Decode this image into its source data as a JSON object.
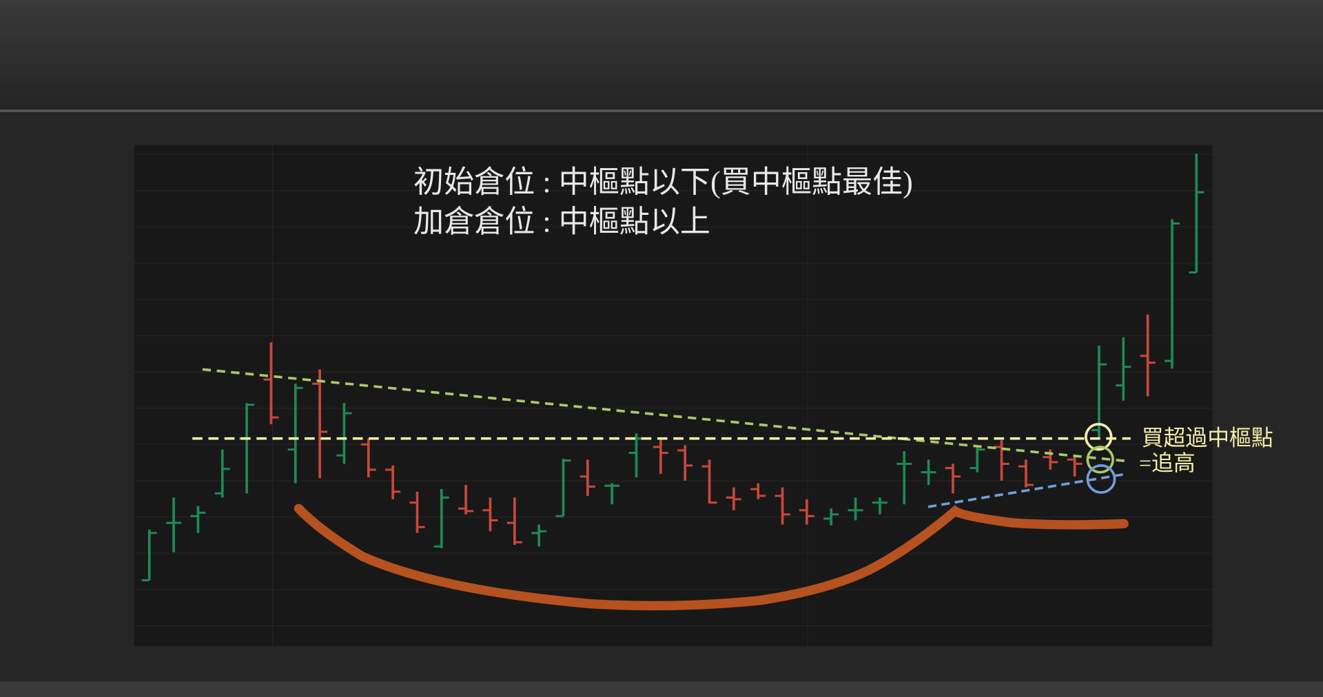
{
  "chart_data": {
    "type": "ohlc",
    "title": "初始倉位 : 中樞點以下(買中樞點最佳)",
    "subtitle": "加倉倉位 : 中樞點以上",
    "annotations": [
      "買超過中樞點",
      "=追高"
    ],
    "up_color": "#1e8a55",
    "down_color": "#c9473c",
    "ylim": [
      34,
      628
    ],
    "open": [
      112,
      180,
      188,
      215,
      280,
      350,
      267,
      345,
      260,
      273,
      243,
      204,
      152,
      197,
      195,
      180,
      168,
      188,
      235,
      224,
      263,
      270,
      266,
      247,
      210,
      220,
      212,
      195,
      185,
      195,
      204,
      250,
      240,
      245,
      245,
      270,
      247,
      258,
      255,
      290,
      343,
      378,
      372,
      477
    ],
    "high": [
      172,
      210,
      200,
      267,
      322,
      394,
      345,
      362,
      322,
      280,
      248,
      217,
      220,
      225,
      210,
      210,
      178,
      256,
      255,
      227,
      286,
      280,
      272,
      255,
      222,
      227,
      222,
      208,
      197,
      210,
      210,
      265,
      255,
      250,
      270,
      278,
      255,
      267,
      260,
      390,
      400,
      427,
      540,
      618
    ],
    "low": [
      112,
      145,
      168,
      210,
      215,
      297,
      227,
      233,
      250,
      234,
      208,
      168,
      150,
      190,
      170,
      154,
      152,
      188,
      212,
      202,
      234,
      238,
      230,
      203,
      195,
      208,
      178,
      178,
      177,
      183,
      190,
      202,
      225,
      215,
      240,
      230,
      222,
      243,
      235,
      280,
      325,
      330,
      363,
      477
    ],
    "close": [
      168,
      180,
      192,
      244,
      320,
      305,
      340,
      288,
      310,
      243,
      217,
      175,
      210,
      194,
      183,
      157,
      170,
      254,
      223,
      224,
      280,
      263,
      248,
      204,
      208,
      212,
      190,
      188,
      190,
      195,
      204,
      250,
      240,
      235,
      267,
      250,
      225,
      252,
      250,
      368,
      365,
      370,
      535,
      572
    ]
  }
}
